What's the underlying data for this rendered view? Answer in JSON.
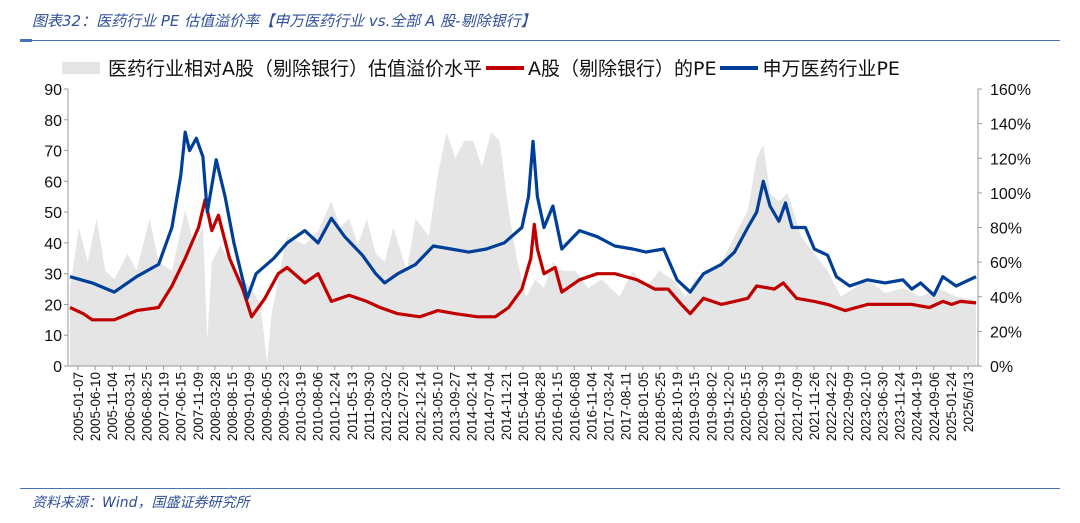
{
  "title": "图表32：医药行业 PE 估值溢价率【申万医药行业 vs.全部 A 股-剔除银行】",
  "source": "资料来源：Wind，国盛证券研究所",
  "colors": {
    "premium": "#e5e5e5",
    "ashare": "#c00000",
    "pharma": "#003f98"
  },
  "chart_data": {
    "type": "line",
    "title": "医药行业 PE 估值溢价率【申万医药行业 vs.全部 A 股-剔除银行】",
    "legend": [
      "医药行业相对A股（剔除银行）估值溢价水平",
      "A股（剔除银行）的PE",
      "申万医药行业PE"
    ],
    "legend_position": "top",
    "y_left": {
      "min": 0,
      "max": 90,
      "ticks": [
        "0",
        "10",
        "20",
        "30",
        "40",
        "50",
        "60",
        "70",
        "80",
        "90"
      ]
    },
    "y_right": {
      "min": 0,
      "max": 160,
      "ticks": [
        "0%",
        "20%",
        "40%",
        "60%",
        "80%",
        "100%",
        "120%",
        "140%",
        "160%"
      ]
    },
    "x_range": [
      2005.0,
      2025.45
    ],
    "x_tick_labels": [
      "2005-01-07",
      "2005-06-10",
      "2005-11-04",
      "2006-03-31",
      "2006-08-25",
      "2007-01-19",
      "2007-06-15",
      "2007-11-09",
      "2008-03-28",
      "2008-08-15",
      "2009-01-09",
      "2009-06-05",
      "2009-10-23",
      "2010-03-19",
      "2010-08-06",
      "2010-12-24",
      "2011-05-13",
      "2011-09-30",
      "2012-03-02",
      "2012-07-20",
      "2012-12-14",
      "2013-05-10",
      "2013-09-27",
      "2014-02-14",
      "2014-07-04",
      "2014-11-21",
      "2015-04-10",
      "2015-08-28",
      "2016-01-15",
      "2016-06-08",
      "2016-11-04",
      "2017-03-24",
      "2017-08-11",
      "2018-01-05",
      "2018-05-25",
      "2018-10-19",
      "2019-03-15",
      "2019-08-02",
      "2019-12-20",
      "2020-05-15",
      "2020-09-30",
      "2021-02-19",
      "2021-07-09",
      "2021-11-26",
      "2022-04-22",
      "2022-09-09",
      "2023-02-10",
      "2023-06-30",
      "2023-11-24",
      "2024-04-19",
      "2024-09-06",
      "2025-01-24",
      "2025/6/13"
    ],
    "series": [
      {
        "name": "医药行业相对A股（剔除银行）估值溢价水平",
        "type": "area",
        "axis": "right",
        "unit": "%",
        "points": [
          [
            2005.0,
            45
          ],
          [
            2005.2,
            80
          ],
          [
            2005.4,
            60
          ],
          [
            2005.6,
            85
          ],
          [
            2005.8,
            55
          ],
          [
            2006.0,
            50
          ],
          [
            2006.3,
            65
          ],
          [
            2006.5,
            55
          ],
          [
            2006.8,
            85
          ],
          [
            2007.0,
            60
          ],
          [
            2007.3,
            55
          ],
          [
            2007.6,
            90
          ],
          [
            2007.8,
            70
          ],
          [
            2008.0,
            80
          ],
          [
            2008.1,
            15
          ],
          [
            2008.2,
            60
          ],
          [
            2008.4,
            70
          ],
          [
            2008.6,
            60
          ],
          [
            2008.9,
            50
          ],
          [
            2009.1,
            45
          ],
          [
            2009.3,
            35
          ],
          [
            2009.45,
            2
          ],
          [
            2009.55,
            30
          ],
          [
            2009.7,
            50
          ],
          [
            2009.9,
            75
          ],
          [
            2010.3,
            70
          ],
          [
            2010.6,
            78
          ],
          [
            2010.9,
            95
          ],
          [
            2011.1,
            80
          ],
          [
            2011.3,
            85
          ],
          [
            2011.5,
            70
          ],
          [
            2011.7,
            85
          ],
          [
            2011.9,
            65
          ],
          [
            2012.1,
            60
          ],
          [
            2012.3,
            80
          ],
          [
            2012.6,
            55
          ],
          [
            2012.8,
            85
          ],
          [
            2013.1,
            75
          ],
          [
            2013.3,
            110
          ],
          [
            2013.5,
            135
          ],
          [
            2013.7,
            120
          ],
          [
            2013.9,
            130
          ],
          [
            2014.1,
            130
          ],
          [
            2014.3,
            115
          ],
          [
            2014.5,
            135
          ],
          [
            2014.7,
            130
          ],
          [
            2014.9,
            90
          ],
          [
            2015.1,
            60
          ],
          [
            2015.3,
            40
          ],
          [
            2015.5,
            50
          ],
          [
            2015.7,
            45
          ],
          [
            2015.9,
            60
          ],
          [
            2016.1,
            55
          ],
          [
            2016.4,
            55
          ],
          [
            2016.7,
            45
          ],
          [
            2017.0,
            50
          ],
          [
            2017.4,
            40
          ],
          [
            2017.7,
            55
          ],
          [
            2018.0,
            45
          ],
          [
            2018.3,
            55
          ],
          [
            2018.6,
            50
          ],
          [
            2018.9,
            40
          ],
          [
            2019.1,
            50
          ],
          [
            2019.4,
            55
          ],
          [
            2019.7,
            60
          ],
          [
            2020.0,
            75
          ],
          [
            2020.3,
            90
          ],
          [
            2020.5,
            120
          ],
          [
            2020.65,
            128
          ],
          [
            2020.8,
            100
          ],
          [
            2021.0,
            95
          ],
          [
            2021.2,
            100
          ],
          [
            2021.5,
            75
          ],
          [
            2021.8,
            65
          ],
          [
            2022.1,
            55
          ],
          [
            2022.4,
            40
          ],
          [
            2022.7,
            45
          ],
          [
            2023.0,
            50
          ],
          [
            2023.4,
            42
          ],
          [
            2023.8,
            45
          ],
          [
            2024.2,
            40
          ],
          [
            2024.6,
            45
          ],
          [
            2025.0,
            40
          ],
          [
            2025.45,
            38
          ]
        ]
      },
      {
        "name": "A股（剔除银行）的PE",
        "type": "line",
        "axis": "left",
        "points": [
          [
            2005.0,
            19
          ],
          [
            2005.3,
            17
          ],
          [
            2005.5,
            15
          ],
          [
            2006.0,
            15
          ],
          [
            2006.5,
            18
          ],
          [
            2007.0,
            19
          ],
          [
            2007.3,
            26
          ],
          [
            2007.6,
            35
          ],
          [
            2007.9,
            45
          ],
          [
            2008.05,
            54
          ],
          [
            2008.2,
            44
          ],
          [
            2008.35,
            49
          ],
          [
            2008.6,
            35
          ],
          [
            2008.9,
            25
          ],
          [
            2009.1,
            16
          ],
          [
            2009.4,
            22
          ],
          [
            2009.7,
            30
          ],
          [
            2009.9,
            32
          ],
          [
            2010.3,
            27
          ],
          [
            2010.6,
            30
          ],
          [
            2010.9,
            21
          ],
          [
            2011.3,
            23
          ],
          [
            2011.7,
            21
          ],
          [
            2012.0,
            19
          ],
          [
            2012.4,
            17
          ],
          [
            2012.9,
            16
          ],
          [
            2013.3,
            18
          ],
          [
            2013.7,
            17
          ],
          [
            2014.2,
            16
          ],
          [
            2014.6,
            16
          ],
          [
            2014.9,
            19
          ],
          [
            2015.2,
            25
          ],
          [
            2015.4,
            35
          ],
          [
            2015.48,
            46
          ],
          [
            2015.55,
            38
          ],
          [
            2015.7,
            30
          ],
          [
            2015.95,
            32
          ],
          [
            2016.1,
            24
          ],
          [
            2016.5,
            28
          ],
          [
            2016.9,
            30
          ],
          [
            2017.3,
            30
          ],
          [
            2017.8,
            28
          ],
          [
            2018.2,
            25
          ],
          [
            2018.5,
            25
          ],
          [
            2018.8,
            20
          ],
          [
            2019.0,
            17
          ],
          [
            2019.3,
            22
          ],
          [
            2019.7,
            20
          ],
          [
            2020.0,
            21
          ],
          [
            2020.3,
            22
          ],
          [
            2020.5,
            26
          ],
          [
            2020.9,
            25
          ],
          [
            2021.1,
            27
          ],
          [
            2021.4,
            22
          ],
          [
            2021.8,
            21
          ],
          [
            2022.1,
            20
          ],
          [
            2022.5,
            18
          ],
          [
            2023.0,
            20
          ],
          [
            2023.5,
            20
          ],
          [
            2024.0,
            20
          ],
          [
            2024.4,
            19
          ],
          [
            2024.7,
            21
          ],
          [
            2024.9,
            20
          ],
          [
            2025.1,
            21
          ],
          [
            2025.45,
            20.5
          ]
        ]
      },
      {
        "name": "申万医药行业PE",
        "type": "line",
        "axis": "left",
        "points": [
          [
            2005.0,
            29
          ],
          [
            2005.5,
            27
          ],
          [
            2006.0,
            24
          ],
          [
            2006.5,
            29
          ],
          [
            2007.0,
            33
          ],
          [
            2007.3,
            45
          ],
          [
            2007.5,
            62
          ],
          [
            2007.6,
            76
          ],
          [
            2007.7,
            70
          ],
          [
            2007.85,
            74
          ],
          [
            2008.0,
            68
          ],
          [
            2008.1,
            50
          ],
          [
            2008.3,
            67
          ],
          [
            2008.5,
            55
          ],
          [
            2008.7,
            40
          ],
          [
            2009.0,
            22
          ],
          [
            2009.2,
            30
          ],
          [
            2009.6,
            35
          ],
          [
            2009.9,
            40
          ],
          [
            2010.3,
            44
          ],
          [
            2010.6,
            40
          ],
          [
            2010.9,
            48
          ],
          [
            2011.2,
            42
          ],
          [
            2011.6,
            36
          ],
          [
            2011.9,
            30
          ],
          [
            2012.1,
            27
          ],
          [
            2012.4,
            30
          ],
          [
            2012.8,
            33
          ],
          [
            2013.2,
            39
          ],
          [
            2013.6,
            38
          ],
          [
            2014.0,
            37
          ],
          [
            2014.4,
            38
          ],
          [
            2014.8,
            40
          ],
          [
            2015.2,
            45
          ],
          [
            2015.35,
            55
          ],
          [
            2015.45,
            73
          ],
          [
            2015.55,
            55
          ],
          [
            2015.7,
            45
          ],
          [
            2015.9,
            52
          ],
          [
            2016.1,
            38
          ],
          [
            2016.5,
            44
          ],
          [
            2016.9,
            42
          ],
          [
            2017.3,
            39
          ],
          [
            2017.7,
            38
          ],
          [
            2018.0,
            37
          ],
          [
            2018.4,
            38
          ],
          [
            2018.7,
            28
          ],
          [
            2019.0,
            24
          ],
          [
            2019.3,
            30
          ],
          [
            2019.7,
            33
          ],
          [
            2020.0,
            37
          ],
          [
            2020.3,
            45
          ],
          [
            2020.5,
            50
          ],
          [
            2020.65,
            60
          ],
          [
            2020.8,
            52
          ],
          [
            2021.0,
            47
          ],
          [
            2021.15,
            53
          ],
          [
            2021.3,
            45
          ],
          [
            2021.6,
            45
          ],
          [
            2021.8,
            38
          ],
          [
            2022.1,
            36
          ],
          [
            2022.3,
            29
          ],
          [
            2022.6,
            26
          ],
          [
            2023.0,
            28
          ],
          [
            2023.4,
            27
          ],
          [
            2023.8,
            28
          ],
          [
            2024.0,
            25
          ],
          [
            2024.2,
            27
          ],
          [
            2024.5,
            23
          ],
          [
            2024.7,
            29
          ],
          [
            2025.0,
            26
          ],
          [
            2025.45,
            29
          ]
        ]
      }
    ]
  }
}
